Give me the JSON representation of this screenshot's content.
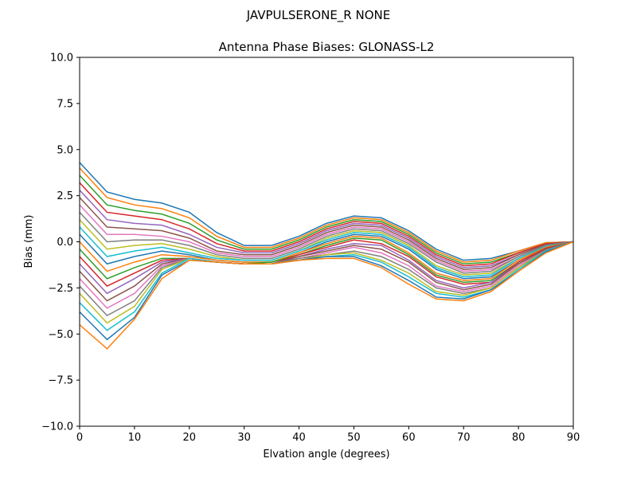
{
  "figure": {
    "suptitle": "JAVPULSERONE_R  NONE"
  },
  "chart_data": {
    "type": "line",
    "title": "Antenna Phase Biases: GLONASS-L2",
    "xlabel": "Elvation angle (degrees)",
    "ylabel": "Bias (mm)",
    "xlim": [
      0,
      90
    ],
    "ylim": [
      -10,
      10
    ],
    "xticks": [
      0,
      10,
      20,
      30,
      40,
      50,
      60,
      70,
      80,
      90
    ],
    "xtick_labels": [
      "0",
      "10",
      "20",
      "30",
      "40",
      "50",
      "60",
      "70",
      "80",
      "90"
    ],
    "yticks": [
      -10,
      -7.5,
      -5,
      -2.5,
      0,
      2.5,
      5,
      7.5,
      10
    ],
    "ytick_labels": [
      "−10.0",
      "−7.5",
      "−5.0",
      "−2.5",
      "0.0",
      "2.5",
      "5.0",
      "7.5",
      "10.0"
    ],
    "grid": false,
    "legend": "none",
    "colors": [
      "#1f77b4",
      "#ff7f0e",
      "#2ca02c",
      "#d62728",
      "#9467bd",
      "#8c564b",
      "#e377c2",
      "#7f7f7f",
      "#bcbd22",
      "#17becf"
    ],
    "x": [
      0,
      5,
      10,
      15,
      20,
      25,
      30,
      35,
      40,
      45,
      50,
      55,
      60,
      65,
      70,
      75,
      80,
      85,
      90
    ],
    "series": [
      {
        "values": [
          4.3,
          2.7,
          2.3,
          2.1,
          1.6,
          0.5,
          -0.2,
          -0.2,
          0.3,
          1.0,
          1.4,
          1.3,
          0.6,
          -0.4,
          -1.0,
          -0.9,
          -0.5,
          -0.05,
          0.0
        ]
      },
      {
        "values": [
          4.0,
          2.4,
          2.0,
          1.8,
          1.3,
          0.3,
          -0.3,
          -0.3,
          0.2,
          0.9,
          1.3,
          1.2,
          0.5,
          -0.5,
          -1.1,
          -1.0,
          -0.5,
          -0.05,
          0.0
        ]
      },
      {
        "values": [
          3.6,
          2.0,
          1.7,
          1.5,
          1.0,
          0.1,
          -0.4,
          -0.4,
          0.1,
          0.8,
          1.2,
          1.1,
          0.4,
          -0.6,
          -1.2,
          -1.1,
          -0.6,
          -0.1,
          0.0
        ]
      },
      {
        "values": [
          3.2,
          1.6,
          1.4,
          1.2,
          0.7,
          -0.1,
          -0.5,
          -0.5,
          0.0,
          0.7,
          1.1,
          1.0,
          0.3,
          -0.7,
          -1.3,
          -1.2,
          -0.6,
          -0.1,
          0.0
        ]
      },
      {
        "values": [
          2.8,
          1.2,
          1.0,
          0.9,
          0.4,
          -0.3,
          -0.6,
          -0.6,
          -0.1,
          0.6,
          1.0,
          0.9,
          0.2,
          -0.8,
          -1.4,
          -1.3,
          -0.7,
          -0.15,
          0.0
        ]
      },
      {
        "values": [
          2.4,
          0.8,
          0.7,
          0.6,
          0.2,
          -0.5,
          -0.7,
          -0.7,
          -0.2,
          0.5,
          0.9,
          0.8,
          0.1,
          -0.9,
          -1.5,
          -1.4,
          -0.7,
          -0.15,
          0.0
        ]
      },
      {
        "values": [
          2.0,
          0.4,
          0.4,
          0.3,
          0.0,
          -0.6,
          -0.8,
          -0.8,
          -0.3,
          0.4,
          0.8,
          0.7,
          0.0,
          -1.0,
          -1.6,
          -1.5,
          -0.8,
          -0.2,
          0.0
        ]
      },
      {
        "values": [
          1.6,
          0.0,
          0.1,
          0.1,
          -0.2,
          -0.7,
          -0.9,
          -0.9,
          -0.4,
          0.3,
          0.7,
          0.6,
          -0.1,
          -1.1,
          -1.7,
          -1.6,
          -0.8,
          -0.2,
          0.0
        ]
      },
      {
        "values": [
          1.2,
          -0.4,
          -0.2,
          -0.1,
          -0.4,
          -0.8,
          -1.0,
          -1.0,
          -0.5,
          0.2,
          0.6,
          0.5,
          -0.2,
          -1.3,
          -1.8,
          -1.7,
          -0.9,
          -0.25,
          0.0
        ]
      },
      {
        "values": [
          0.8,
          -0.8,
          -0.5,
          -0.3,
          -0.6,
          -0.9,
          -1.0,
          -1.0,
          -0.5,
          0.1,
          0.5,
          0.4,
          -0.3,
          -1.4,
          -1.9,
          -1.8,
          -0.9,
          -0.25,
          0.0
        ]
      },
      {
        "values": [
          0.4,
          -1.2,
          -0.8,
          -0.5,
          -0.7,
          -1.0,
          -1.1,
          -1.1,
          -0.6,
          0.0,
          0.4,
          0.3,
          -0.4,
          -1.5,
          -2.0,
          -1.9,
          -1.0,
          -0.3,
          0.0
        ]
      },
      {
        "values": [
          0.0,
          -1.6,
          -1.1,
          -0.7,
          -0.8,
          -1.0,
          -1.1,
          -1.1,
          -0.6,
          -0.1,
          0.3,
          0.2,
          -0.6,
          -1.7,
          -2.1,
          -2.0,
          -1.0,
          -0.3,
          0.0
        ]
      },
      {
        "values": [
          -0.4,
          -2.0,
          -1.4,
          -0.9,
          -0.9,
          -1.1,
          -1.2,
          -1.1,
          -0.7,
          -0.2,
          0.2,
          0.1,
          -0.7,
          -1.8,
          -2.2,
          -2.1,
          -1.1,
          -0.35,
          0.0
        ]
      },
      {
        "values": [
          -0.8,
          -2.4,
          -1.7,
          -1.0,
          -0.9,
          -1.1,
          -1.2,
          -1.2,
          -0.7,
          -0.3,
          0.1,
          -0.1,
          -0.8,
          -1.9,
          -2.3,
          -2.2,
          -1.1,
          -0.35,
          0.0
        ]
      },
      {
        "values": [
          -1.2,
          -2.8,
          -2.0,
          -1.1,
          -0.9,
          -1.1,
          -1.2,
          -1.2,
          -0.8,
          -0.4,
          -0.1,
          -0.2,
          -1.0,
          -2.1,
          -2.5,
          -2.2,
          -1.2,
          -0.4,
          0.0
        ]
      },
      {
        "values": [
          -1.6,
          -3.2,
          -2.4,
          -1.2,
          -0.9,
          -1.1,
          -1.2,
          -1.2,
          -0.8,
          -0.5,
          -0.2,
          -0.4,
          -1.1,
          -2.2,
          -2.6,
          -2.3,
          -1.2,
          -0.4,
          0.0
        ]
      },
      {
        "values": [
          -2.0,
          -3.6,
          -2.8,
          -1.3,
          -0.9,
          -1.1,
          -1.2,
          -1.2,
          -0.9,
          -0.6,
          -0.3,
          -0.6,
          -1.3,
          -2.4,
          -2.7,
          -2.4,
          -1.3,
          -0.45,
          0.0
        ]
      },
      {
        "values": [
          -2.4,
          -4.0,
          -3.2,
          -1.4,
          -0.9,
          -1.1,
          -1.2,
          -1.2,
          -0.9,
          -0.7,
          -0.5,
          -0.8,
          -1.5,
          -2.5,
          -2.8,
          -2.5,
          -1.4,
          -0.45,
          0.0
        ]
      },
      {
        "values": [
          -2.8,
          -4.4,
          -3.5,
          -1.5,
          -0.9,
          -1.1,
          -1.2,
          -1.2,
          -1.0,
          -0.7,
          -0.6,
          -1.0,
          -1.7,
          -2.7,
          -2.9,
          -2.5,
          -1.4,
          -0.5,
          0.0
        ]
      },
      {
        "values": [
          -3.3,
          -4.8,
          -3.8,
          -1.7,
          -0.9,
          -1.1,
          -1.2,
          -1.2,
          -1.0,
          -0.8,
          -0.7,
          -1.1,
          -1.9,
          -2.8,
          -3.0,
          -2.6,
          -1.5,
          -0.5,
          0.0
        ]
      },
      {
        "values": [
          -3.8,
          -5.3,
          -4.1,
          -1.8,
          -1.0,
          -1.1,
          -1.2,
          -1.2,
          -1.0,
          -0.8,
          -0.8,
          -1.3,
          -2.1,
          -3.0,
          -3.1,
          -2.6,
          -1.6,
          -0.55,
          0.0
        ]
      },
      {
        "values": [
          -4.5,
          -5.8,
          -4.2,
          -2.0,
          -1.0,
          -1.1,
          -1.2,
          -1.2,
          -1.0,
          -0.9,
          -0.9,
          -1.4,
          -2.3,
          -3.1,
          -3.2,
          -2.7,
          -1.6,
          -0.6,
          0.0
        ]
      }
    ]
  }
}
